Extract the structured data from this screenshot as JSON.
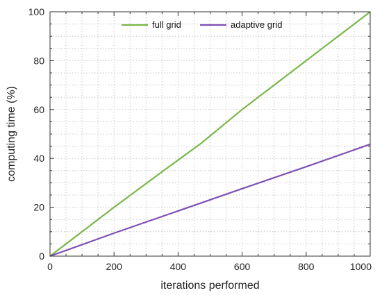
{
  "chart_data": {
    "type": "line",
    "title": "",
    "xlabel": "iterations performed",
    "ylabel": "computing time (%)",
    "xlim": [
      0,
      1000
    ],
    "ylim": [
      0,
      100
    ],
    "x_ticks": [
      0,
      200,
      400,
      600,
      800,
      1000
    ],
    "y_ticks": [
      0,
      20,
      40,
      60,
      80,
      100
    ],
    "x_minor_step": 50,
    "y_minor_step": 5,
    "grid": true,
    "legend": "top-center",
    "series": [
      {
        "name": "full grid",
        "color": "#7ab648",
        "x": [
          0,
          200,
          360,
          470,
          600,
          800,
          1000
        ],
        "y": [
          0,
          20,
          35.5,
          46,
          60,
          80,
          100
        ]
      },
      {
        "name": "adaptive grid",
        "color": "#7f4fb5",
        "x": [
          0,
          200,
          400,
          600,
          800,
          1000
        ],
        "y": [
          0,
          9.4,
          18.5,
          27.6,
          36.6,
          45.8
        ]
      }
    ]
  }
}
